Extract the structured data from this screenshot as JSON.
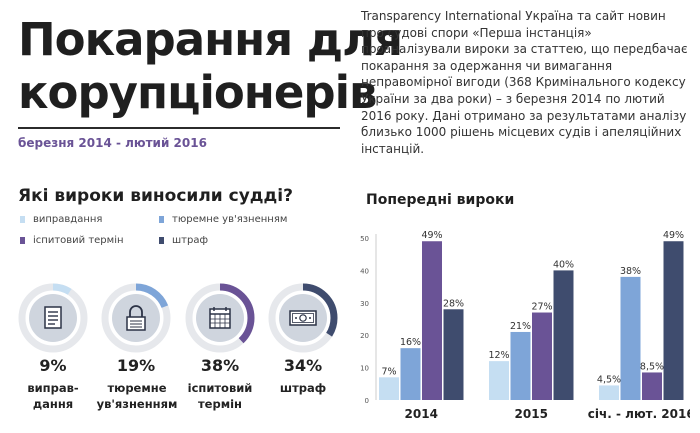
{
  "header": {
    "title_line1": "Покарання для",
    "title_line2": "корупціонерів",
    "period": "березня  2014 - лютий 2016",
    "intro": "Transparency International Україна та сайт новин про судові спори «Перша інстанція» проаналізували вироки за статтею, що передбачає покарання за одержання чи вимагання неправомірної вигоди (368 Кримінального кодексу України за два роки) – з березня 2014 по лютий 2016 року. Дані отримано за результатами аналізу близько 1000 рішень місцевих судів і апеляційних інстанцій."
  },
  "sentences": {
    "heading": "Які вироки виносили судді?",
    "legend": [
      {
        "label": "виправдання",
        "color": "#c5def2"
      },
      {
        "label": "тюремне ув'язненням",
        "color": "#7ea5d8"
      },
      {
        "label": "іспитовий термін",
        "color": "#6a5396"
      },
      {
        "label": "штраф",
        "color": "#3f4c6e"
      }
    ],
    "cards": [
      {
        "percent": "9%",
        "value": 9,
        "label_line1": "виправ-",
        "label_line2": "дання",
        "color": "#c5def2",
        "icon": "document-icon"
      },
      {
        "percent": "19%",
        "value": 19,
        "label_line1": "тюремне",
        "label_line2": "ув'язненням",
        "color": "#7ea5d8",
        "icon": "lock-icon"
      },
      {
        "percent": "38%",
        "value": 38,
        "label_line1": "іспитовий",
        "label_line2": "термін",
        "color": "#6a5396",
        "icon": "calendar-icon"
      },
      {
        "percent": "34%",
        "value": 34,
        "label_line1": "штраф",
        "label_line2": "",
        "color": "#3f4c6e",
        "icon": "banknote-icon"
      }
    ],
    "track_color": "#e6e8ec",
    "icon_bg": "#cfd5de"
  },
  "chart_data": {
    "type": "bar",
    "title": "Попередні вироки",
    "categories": [
      "2014",
      "2015",
      "січ. - лют. 2016"
    ],
    "ylim": [
      0,
      50
    ],
    "yticks": [
      0,
      10,
      20,
      30,
      40,
      50
    ],
    "grid": false,
    "series": [
      {
        "values": [
          7,
          12,
          4.5
        ],
        "labels": [
          "7%",
          "12%",
          "4,5%"
        ],
        "color": "#c5def2"
      },
      {
        "values": [
          16,
          21,
          38
        ],
        "labels": [
          "16%",
          "21%",
          "38%"
        ],
        "color": "#7ea5d8"
      },
      {
        "values": [
          49,
          27,
          8.5
        ],
        "labels": [
          "49%",
          "27%",
          "8,5%"
        ],
        "color": "#6a5396"
      },
      {
        "values": [
          28,
          40,
          49
        ],
        "labels": [
          "28%",
          "40%",
          "49%"
        ],
        "color": "#3f4c6e"
      }
    ]
  }
}
